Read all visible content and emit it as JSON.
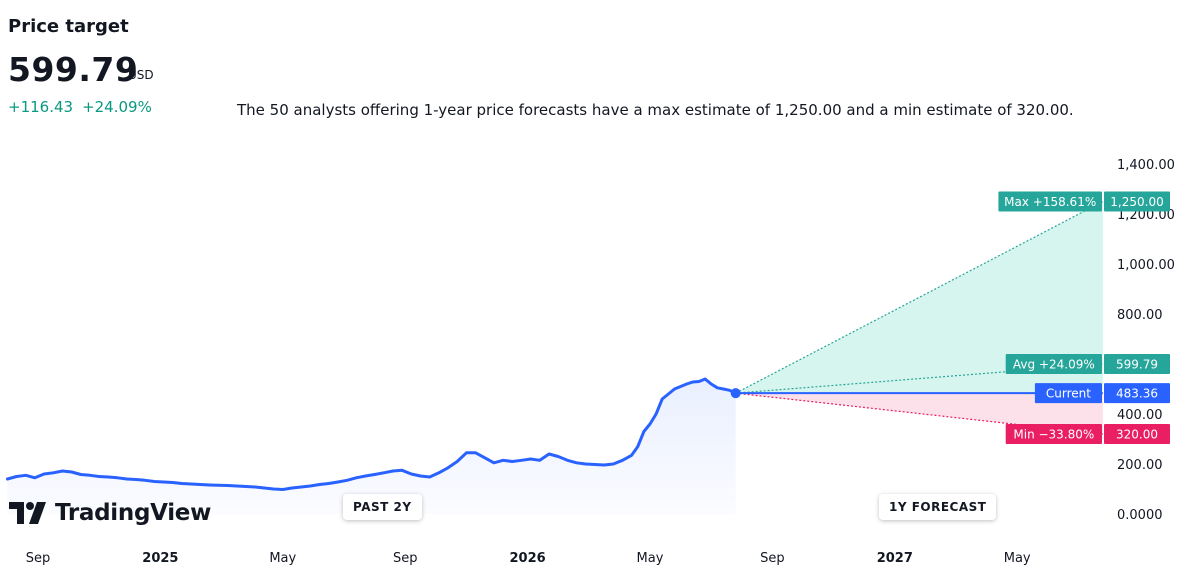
{
  "header": {
    "title": "Price target",
    "price": "599.79",
    "currency": "USD",
    "change_abs": "+116.43",
    "change_pct": "+24.09%",
    "summary": "The 50 analysts offering 1-year price forecasts have a max estimate of 1,250.00 and a min estimate of 320.00."
  },
  "brand": {
    "name": "TradingView"
  },
  "periods": {
    "past": "PAST 2Y",
    "forecast": "1Y FORECAST"
  },
  "colors": {
    "price_line": "#2962ff",
    "max_label": "#26a69a",
    "avg_label": "#26a69a",
    "current_label": "#2962ff",
    "min_label": "#e91e63",
    "up_fill": "#d5f5ee",
    "down_fill": "#fce0ea"
  },
  "chart_data": {
    "type": "line",
    "ylim": [
      0,
      1400
    ],
    "y_ticks": [
      "1,400.00",
      "1,200.00",
      "1,000.00",
      "800.00",
      "400.00",
      "200.00",
      "0.0000"
    ],
    "y_tick_values": [
      1400,
      1200,
      1000,
      800,
      400,
      200,
      0
    ],
    "x_ticks": [
      {
        "label": "Sep",
        "t": 0.0,
        "bold": false
      },
      {
        "label": "2025",
        "t": 4.0,
        "bold": true
      },
      {
        "label": "May",
        "t": 8.0,
        "bold": false
      },
      {
        "label": "Sep",
        "t": 12.0,
        "bold": false
      },
      {
        "label": "2026",
        "t": 16.0,
        "bold": true
      },
      {
        "label": "May",
        "t": 20.0,
        "bold": false
      },
      {
        "label": "Sep",
        "t": 24.0,
        "bold": false
      },
      {
        "label": "2027",
        "t": 28.0,
        "bold": true
      },
      {
        "label": "May",
        "t": 32.0,
        "bold": false
      }
    ],
    "history": {
      "t": [
        -1.0,
        -0.7,
        -0.4,
        -0.1,
        0.2,
        0.5,
        0.8,
        1.1,
        1.4,
        1.7,
        2.0,
        2.3,
        2.6,
        2.9,
        3.2,
        3.5,
        3.8,
        4.1,
        4.4,
        4.7,
        5.0,
        5.3,
        5.6,
        5.9,
        6.2,
        6.5,
        6.8,
        7.1,
        7.4,
        7.7,
        8.0,
        8.3,
        8.6,
        8.9,
        9.2,
        9.5,
        9.8,
        10.1,
        10.4,
        10.7,
        11.0,
        11.3,
        11.6,
        11.9,
        12.2,
        12.5,
        12.8,
        13.1,
        13.4,
        13.7,
        14.0,
        14.3,
        14.6,
        14.9,
        15.2,
        15.5,
        15.8,
        16.1,
        16.4,
        16.7,
        17.0,
        17.3,
        17.6,
        17.9,
        18.2,
        18.5,
        18.8,
        19.1,
        19.4,
        19.6,
        19.8,
        20.0,
        20.2,
        20.4,
        20.6,
        20.8,
        21.0,
        21.2,
        21.4,
        21.6,
        21.8,
        22.0,
        22.2,
        22.4,
        22.6,
        22.8
      ],
      "y": [
        140,
        150,
        155,
        145,
        160,
        165,
        172,
        168,
        158,
        155,
        150,
        148,
        145,
        140,
        138,
        135,
        130,
        128,
        126,
        122,
        120,
        118,
        116,
        115,
        114,
        112,
        110,
        108,
        104,
        100,
        98,
        104,
        108,
        112,
        118,
        122,
        128,
        135,
        145,
        152,
        158,
        165,
        172,
        175,
        160,
        152,
        148,
        165,
        185,
        210,
        245,
        245,
        225,
        205,
        215,
        210,
        215,
        220,
        215,
        240,
        230,
        215,
        205,
        200,
        198,
        196,
        200,
        215,
        235,
        270,
        330,
        360,
        400,
        460,
        480,
        500,
        510,
        520,
        528,
        530,
        540,
        520,
        505,
        500,
        495,
        483.36
      ]
    },
    "forecast": {
      "t_start": 22.8,
      "t_end": 34.8,
      "current": 483.36,
      "max": 1250.0,
      "avg": 599.79,
      "min": 320.0
    },
    "labels": {
      "max": {
        "text": "Max +158.61%",
        "value": "1,250.00"
      },
      "avg": {
        "text": "Avg +24.09%",
        "value": "599.79"
      },
      "current": {
        "text": "Current",
        "value": "483.36"
      },
      "min": {
        "text": "Min −33.80%",
        "value": "320.00"
      }
    }
  }
}
